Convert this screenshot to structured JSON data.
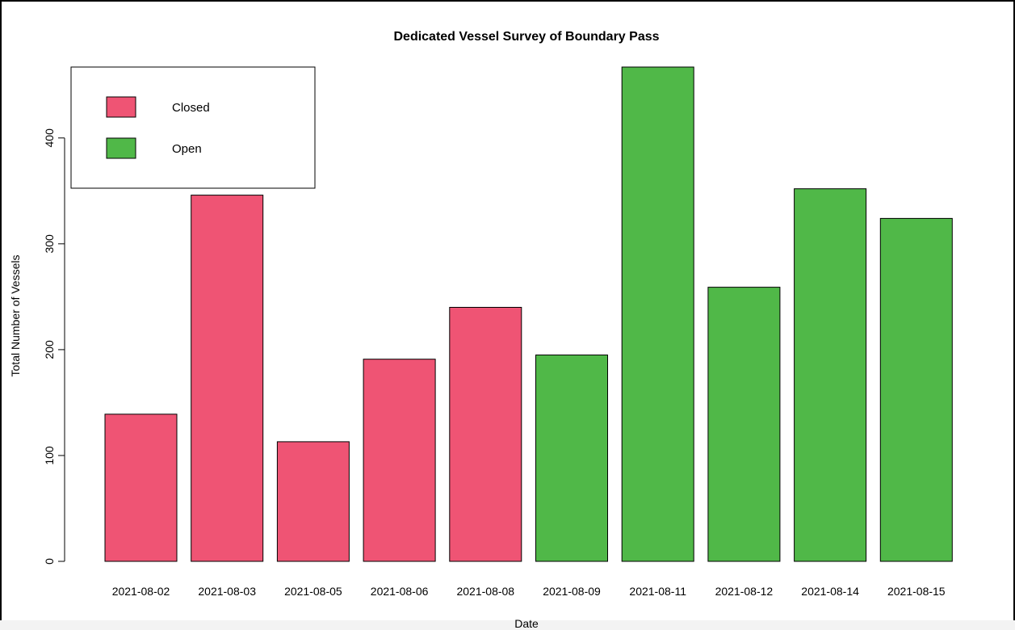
{
  "chart_data": {
    "type": "bar",
    "title": "Dedicated Vessel Survey of Boundary Pass",
    "xlabel": "Date",
    "ylabel": "Total Number of Vessels",
    "categories": [
      "2021-08-02",
      "2021-08-03",
      "2021-08-05",
      "2021-08-06",
      "2021-08-08",
      "2021-08-09",
      "2021-08-11",
      "2021-08-12",
      "2021-08-14",
      "2021-08-15"
    ],
    "values": [
      139,
      346,
      113,
      191,
      240,
      195,
      467,
      259,
      352,
      324
    ],
    "status": [
      "Closed",
      "Closed",
      "Closed",
      "Closed",
      "Closed",
      "Open",
      "Open",
      "Open",
      "Open",
      "Open"
    ],
    "yticks": [
      0,
      100,
      200,
      300,
      400
    ],
    "ylim": [
      0,
      467
    ],
    "grid": false,
    "legend": {
      "placement": "top-left",
      "entries": [
        {
          "label": "Closed",
          "color": "#ef5474"
        },
        {
          "label": "Open",
          "color": "#50b848"
        }
      ]
    },
    "colors": {
      "Closed": "#ef5474",
      "Open": "#50b848"
    }
  }
}
